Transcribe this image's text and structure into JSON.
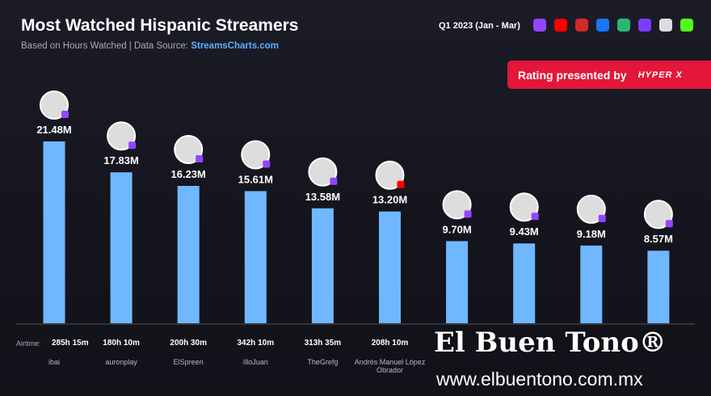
{
  "header": {
    "title": "Most Watched Hispanic Streamers",
    "subtitle_prefix": "Based on Hours Watched  |  Data Source: ",
    "source": "StreamsCharts.com",
    "period": "Q1 2023 (Jan - Mar)",
    "platform_icons": [
      "twitch-icon",
      "youtube-icon",
      "trovo-icon",
      "facebook-icon",
      "nimo-icon",
      "kick-alt-icon",
      "booyah-icon",
      "kick-icon"
    ],
    "sponsor_label": "Rating presented by",
    "sponsor_logo": "HYPERX"
  },
  "chart_data": {
    "type": "bar",
    "title": "Most Watched Hispanic Streamers",
    "ylabel": "Hours Watched",
    "values_labels": [
      "21.48M",
      "17.83M",
      "16.23M",
      "15.61M",
      "13.58M",
      "13.20M",
      "9.70M",
      "9.43M",
      "9.18M",
      "8.57M"
    ],
    "values": [
      21.48,
      17.83,
      16.23,
      15.61,
      13.58,
      13.2,
      9.7,
      9.43,
      9.18,
      8.57
    ],
    "categories": [
      "ibai",
      "auronplay",
      "ElSpreen",
      "IlloJuan",
      "TheGrefg",
      "Andrés Manuel López Obrador",
      "",
      "",
      "",
      ""
    ],
    "airtime": [
      "285h 15m",
      "180h 10m",
      "200h 30m",
      "342h 10m",
      "313h 35m",
      "208h 10m",
      "",
      "",
      "",
      ""
    ],
    "platforms": [
      "twitch",
      "twitch",
      "twitch",
      "twitch",
      "twitch",
      "youtube",
      "twitch",
      "twitch",
      "twitch",
      "twitch"
    ],
    "bar_color": "#6fb8ff",
    "ylim": [
      0,
      22
    ]
  },
  "airtime_label": "Airtime:",
  "watermark": {
    "name": "El Buen Tono",
    "url": "www.elbuentono.com.mx"
  }
}
